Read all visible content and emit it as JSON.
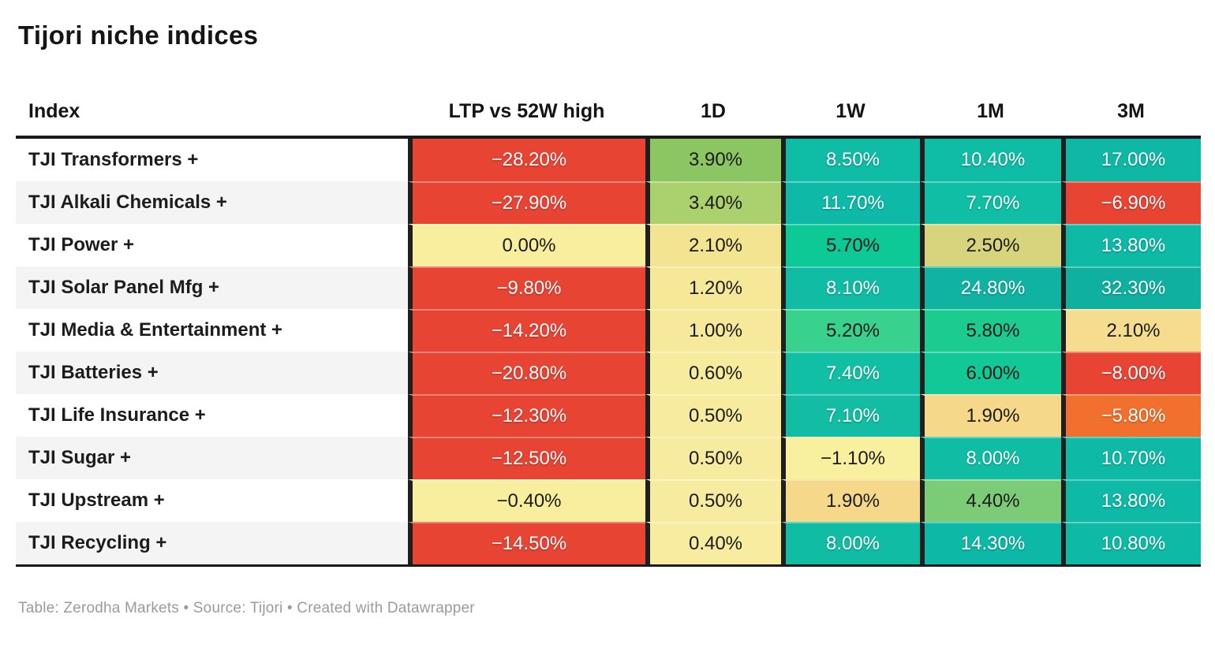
{
  "title": "Tijori niche indices",
  "footer": "Table: Zerodha Markets • Source: Tijori • Created with Datawrapper",
  "colors": {
    "red": "#e74434",
    "orange": "#f2702d",
    "pale_yellow": "#f8ee9e",
    "teal": "#0fbca6",
    "separator": "#1f1f1f",
    "row_stripe": "#f4f4f4",
    "dark_text": "#1b1b1b",
    "light_text": "#ffffff"
  },
  "table": {
    "columns": [
      {
        "label": "Index"
      },
      {
        "label": "LTP vs 52W high"
      },
      {
        "label": "1D"
      },
      {
        "label": "1W"
      },
      {
        "label": "1M"
      },
      {
        "label": "3M"
      }
    ],
    "rows": [
      {
        "index": "TJI Transformers +",
        "cells": [
          {
            "value": "−28.20%",
            "bg": "#e74434",
            "fg": "#ffffff"
          },
          {
            "value": "3.90%",
            "bg": "#8cc663",
            "fg": "#1b1b1b"
          },
          {
            "value": "8.50%",
            "bg": "#0fbca6",
            "fg": "#ffffff"
          },
          {
            "value": "10.40%",
            "bg": "#0fbca6",
            "fg": "#ffffff"
          },
          {
            "value": "17.00%",
            "bg": "#0eb8a5",
            "fg": "#ffffff"
          }
        ]
      },
      {
        "index": "TJI Alkali Chemicals +",
        "cells": [
          {
            "value": "−27.90%",
            "bg": "#e74434",
            "fg": "#ffffff"
          },
          {
            "value": "3.40%",
            "bg": "#abd06e",
            "fg": "#1b1b1b"
          },
          {
            "value": "11.70%",
            "bg": "#0eb9a7",
            "fg": "#ffffff"
          },
          {
            "value": "7.70%",
            "bg": "#10bea5",
            "fg": "#ffffff"
          },
          {
            "value": "−6.90%",
            "bg": "#e74434",
            "fg": "#ffffff"
          }
        ]
      },
      {
        "index": "TJI Power +",
        "cells": [
          {
            "value": "0.00%",
            "bg": "#f8ee9e",
            "fg": "#1b1b1b"
          },
          {
            "value": "2.10%",
            "bg": "#f3e492",
            "fg": "#1b1b1b"
          },
          {
            "value": "5.70%",
            "bg": "#0cc996",
            "fg": "#1b1b1b"
          },
          {
            "value": "2.50%",
            "bg": "#d8d37d",
            "fg": "#1b1b1b"
          },
          {
            "value": "13.80%",
            "bg": "#0eb9a6",
            "fg": "#ffffff"
          }
        ]
      },
      {
        "index": "TJI Solar Panel Mfg +",
        "cells": [
          {
            "value": "−9.80%",
            "bg": "#e74434",
            "fg": "#ffffff"
          },
          {
            "value": "1.20%",
            "bg": "#f6e899",
            "fg": "#1b1b1b"
          },
          {
            "value": "8.10%",
            "bg": "#10bca4",
            "fg": "#ffffff"
          },
          {
            "value": "24.80%",
            "bg": "#10b2a1",
            "fg": "#ffffff"
          },
          {
            "value": "32.30%",
            "bg": "#0fb0a0",
            "fg": "#ffffff"
          }
        ]
      },
      {
        "index": "TJI Media & Entertainment +",
        "cells": [
          {
            "value": "−14.20%",
            "bg": "#e74434",
            "fg": "#ffffff"
          },
          {
            "value": "1.00%",
            "bg": "#f7e99c",
            "fg": "#1b1b1b"
          },
          {
            "value": "5.20%",
            "bg": "#38d18e",
            "fg": "#1b1b1b"
          },
          {
            "value": "5.80%",
            "bg": "#1ccb90",
            "fg": "#1b1b1b"
          },
          {
            "value": "2.10%",
            "bg": "#f5dc8e",
            "fg": "#1b1b1b"
          }
        ]
      },
      {
        "index": "TJI Batteries +",
        "cells": [
          {
            "value": "−20.80%",
            "bg": "#e74434",
            "fg": "#ffffff"
          },
          {
            "value": "0.60%",
            "bg": "#f7eb9e",
            "fg": "#1b1b1b"
          },
          {
            "value": "7.40%",
            "bg": "#11bfa4",
            "fg": "#ffffff"
          },
          {
            "value": "6.00%",
            "bg": "#12c897",
            "fg": "#1b1b1b"
          },
          {
            "value": "−8.00%",
            "bg": "#e74434",
            "fg": "#ffffff"
          }
        ]
      },
      {
        "index": "TJI Life Insurance +",
        "cells": [
          {
            "value": "−12.30%",
            "bg": "#e74434",
            "fg": "#ffffff"
          },
          {
            "value": "0.50%",
            "bg": "#f7eb9f",
            "fg": "#1b1b1b"
          },
          {
            "value": "7.10%",
            "bg": "#12bda4",
            "fg": "#ffffff"
          },
          {
            "value": "1.90%",
            "bg": "#f6d88b",
            "fg": "#1b1b1b"
          },
          {
            "value": "−5.80%",
            "bg": "#f2702d",
            "fg": "#ffffff"
          }
        ]
      },
      {
        "index": "TJI Sugar +",
        "cells": [
          {
            "value": "−12.50%",
            "bg": "#e74434",
            "fg": "#ffffff"
          },
          {
            "value": "0.50%",
            "bg": "#f7eb9f",
            "fg": "#1b1b1b"
          },
          {
            "value": "−1.10%",
            "bg": "#f8ef9f",
            "fg": "#1b1b1b"
          },
          {
            "value": "8.00%",
            "bg": "#10bda4",
            "fg": "#ffffff"
          },
          {
            "value": "10.70%",
            "bg": "#0ebaa6",
            "fg": "#ffffff"
          }
        ]
      },
      {
        "index": "TJI Upstream +",
        "cells": [
          {
            "value": "−0.40%",
            "bg": "#f8ee9e",
            "fg": "#1b1b1b"
          },
          {
            "value": "0.50%",
            "bg": "#f7eb9f",
            "fg": "#1b1b1b"
          },
          {
            "value": "1.90%",
            "bg": "#f6d88b",
            "fg": "#1b1b1b"
          },
          {
            "value": "4.40%",
            "bg": "#7ccb77",
            "fg": "#1b1b1b"
          },
          {
            "value": "13.80%",
            "bg": "#0eb9a6",
            "fg": "#ffffff"
          }
        ]
      },
      {
        "index": "TJI Recycling +",
        "cells": [
          {
            "value": "−14.50%",
            "bg": "#e74434",
            "fg": "#ffffff"
          },
          {
            "value": "0.40%",
            "bg": "#f8eca0",
            "fg": "#1b1b1b"
          },
          {
            "value": "8.00%",
            "bg": "#10bda4",
            "fg": "#ffffff"
          },
          {
            "value": "14.30%",
            "bg": "#0eb8a6",
            "fg": "#ffffff"
          },
          {
            "value": "10.80%",
            "bg": "#0ebaa6",
            "fg": "#ffffff"
          }
        ]
      }
    ]
  },
  "chart_data": {
    "type": "table",
    "title": "Tijori niche indices",
    "columns": [
      "Index",
      "LTP vs 52W high",
      "1D",
      "1W",
      "1M",
      "3M"
    ],
    "heatmap": true,
    "rows": [
      {
        "index": "TJI Transformers +",
        "values": [
          -28.2,
          3.9,
          8.5,
          10.4,
          17.0
        ]
      },
      {
        "index": "TJI Alkali Chemicals +",
        "values": [
          -27.9,
          3.4,
          11.7,
          7.7,
          -6.9
        ]
      },
      {
        "index": "TJI Power +",
        "values": [
          0.0,
          2.1,
          5.7,
          2.5,
          13.8
        ]
      },
      {
        "index": "TJI Solar Panel Mfg +",
        "values": [
          -9.8,
          1.2,
          8.1,
          24.8,
          32.3
        ]
      },
      {
        "index": "TJI Media & Entertainment +",
        "values": [
          -14.2,
          1.0,
          5.2,
          5.8,
          2.1
        ]
      },
      {
        "index": "TJI Batteries +",
        "values": [
          -20.8,
          0.6,
          7.4,
          6.0,
          -8.0
        ]
      },
      {
        "index": "TJI Life Insurance +",
        "values": [
          -12.3,
          0.5,
          7.1,
          1.9,
          -5.8
        ]
      },
      {
        "index": "TJI Sugar +",
        "values": [
          -12.5,
          0.5,
          -1.1,
          8.0,
          10.7
        ]
      },
      {
        "index": "TJI Upstream +",
        "values": [
          -0.4,
          0.5,
          1.9,
          4.4,
          13.8
        ]
      },
      {
        "index": "TJI Recycling +",
        "values": [
          -14.5,
          0.4,
          8.0,
          14.3,
          10.8
        ]
      }
    ]
  }
}
